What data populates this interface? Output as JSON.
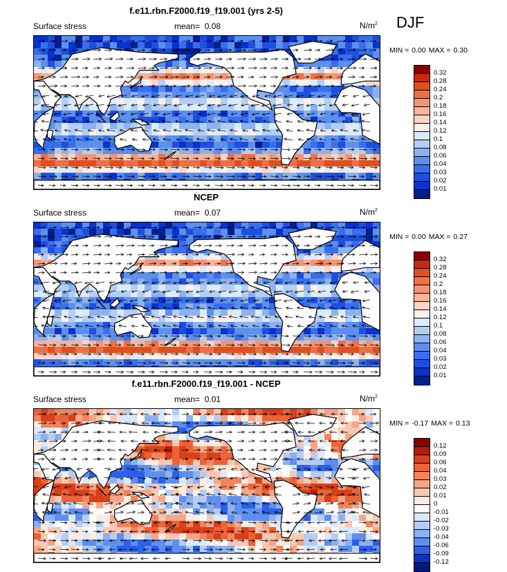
{
  "season": "DJF",
  "panels": [
    {
      "title": "f.e11.rbn.F2000.f19_f19.001 (yrs 2-5)",
      "left_label": "Surface stress",
      "mean_label": "mean=",
      "mean_value": "0.08",
      "units_base": "N/m",
      "units_exp": "2",
      "min_label": "MIN =",
      "min_value": "0.00",
      "max_label": "MAX =",
      "max_value": "0.30",
      "levels": [
        "0.32",
        "0.28",
        "0.24",
        "0.2",
        "0.18",
        "0.16",
        "0.14",
        "0.12",
        "0.1",
        "0.08",
        "0.06",
        "0.04",
        "0.03",
        "0.02",
        "0.01"
      ],
      "colors": [
        "#8b0000",
        "#c62810",
        "#e0501e",
        "#ee7046",
        "#f39474",
        "#f7b49a",
        "#fbd5c4",
        "#fdf0ea",
        "#dcebfa",
        "#b3cdf4",
        "#8cb2ef",
        "#5b8ff0",
        "#386fee",
        "#1f4fe0",
        "#0a32cc",
        "#001f8f"
      ],
      "cmap": "stress",
      "seed": 11
    },
    {
      "title": "NCEP",
      "left_label": "Surface stress",
      "mean_label": "mean=",
      "mean_value": "0.07",
      "units_base": "N/m",
      "units_exp": "2",
      "min_label": "MIN =",
      "min_value": "0.00",
      "max_label": "MAX =",
      "max_value": "0.27",
      "levels": [
        "0.32",
        "0.28",
        "0.24",
        "0.2",
        "0.18",
        "0.16",
        "0.14",
        "0.12",
        "0.1",
        "0.08",
        "0.06",
        "0.04",
        "0.03",
        "0.02",
        "0.01"
      ],
      "colors": [
        "#8b0000",
        "#c62810",
        "#e0501e",
        "#ee7046",
        "#f39474",
        "#f7b49a",
        "#fbd5c4",
        "#fdf0ea",
        "#dcebfa",
        "#b3cdf4",
        "#8cb2ef",
        "#5b8ff0",
        "#386fee",
        "#1f4fe0",
        "#0a32cc",
        "#001f8f"
      ],
      "cmap": "stress",
      "seed": 23
    },
    {
      "title": "f.e11.rbn.F2000.f19_f19.001 - NCEP",
      "left_label": "Surface stress",
      "mean_label": "mean=",
      "mean_value": "0.01",
      "units_base": "N/m",
      "units_exp": "2",
      "min_label": "MIN =",
      "min_value": "-0.17",
      "max_label": "MAX =",
      "max_value": "0.13",
      "levels": [
        "0.12",
        "0.09",
        "0.06",
        "0.04",
        "0.03",
        "0.02",
        "0.01",
        "0",
        "-0.01",
        "-0.02",
        "-0.03",
        "-0.04",
        "-0.06",
        "-0.09",
        "-0.12"
      ],
      "colors": [
        "#8b0000",
        "#b81c0c",
        "#d8401a",
        "#eb6438",
        "#f2845e",
        "#f6a686",
        "#fac8b2",
        "#fdebe2",
        "#ffffff",
        "#dce8fb",
        "#b5cdf5",
        "#8cb1ef",
        "#5e8ff0",
        "#2e5fe8",
        "#0b33c8",
        "#001a80"
      ],
      "cmap": "diff",
      "seed": 37
    }
  ]
}
